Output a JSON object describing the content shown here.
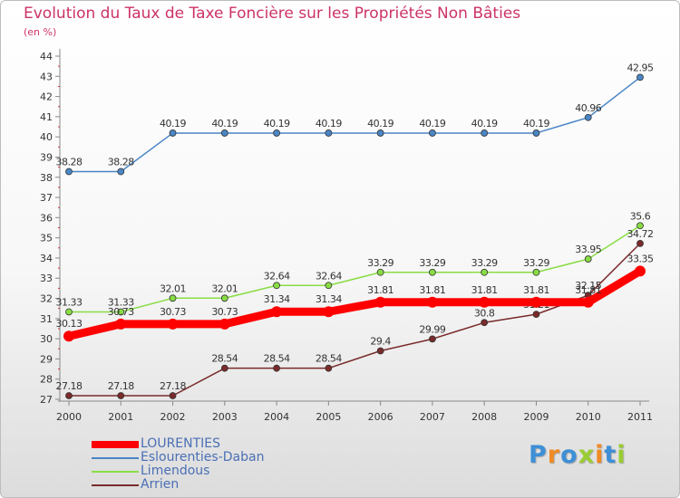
{
  "chart_data": {
    "type": "line",
    "title": "Evolution du Taux de Taxe Foncière sur les Propriétés Non Bâties",
    "subtitle": "(en %)",
    "xlabel": "",
    "ylabel": "",
    "ylim": [
      27,
      44
    ],
    "yticks": [
      "27",
      "28",
      "29",
      "30",
      "31",
      "32",
      "33",
      "34",
      "35",
      "36",
      "37",
      "38",
      "39",
      "40",
      "41",
      "42",
      "43",
      "44"
    ],
    "categories": [
      "2000",
      "2001",
      "2002",
      "2003",
      "2004",
      "2005",
      "2006",
      "2007",
      "2008",
      "2009",
      "2010",
      "2011"
    ],
    "grid": false,
    "legend_position": "bottom-left",
    "series": [
      {
        "name": "LOURENTIES",
        "color": "#ff0000",
        "values": [
          30.13,
          30.73,
          30.73,
          30.73,
          31.34,
          31.34,
          31.81,
          31.81,
          31.81,
          31.81,
          31.81,
          33.35
        ],
        "labels": [
          "30.13",
          "30.73",
          "30.73",
          "30.73",
          "31.34",
          "31.34",
          "31.81",
          "31.81",
          "31.81",
          "31.81",
          "31.81",
          "33.35"
        ]
      },
      {
        "name": "Eslourenties-Daban",
        "color": "#4a86c6",
        "values": [
          38.28,
          38.28,
          40.19,
          40.19,
          40.19,
          40.19,
          40.19,
          40.19,
          40.19,
          40.19,
          40.96,
          42.95
        ],
        "labels": [
          "38.28",
          "38.28",
          "40.19",
          "40.19",
          "40.19",
          "40.19",
          "40.19",
          "40.19",
          "40.19",
          "40.19",
          "40.96",
          "42.95"
        ]
      },
      {
        "name": "Limendous",
        "color": "#88dd44",
        "values": [
          31.33,
          31.33,
          32.01,
          32.01,
          32.64,
          32.64,
          33.29,
          33.29,
          33.29,
          33.29,
          33.95,
          35.6
        ],
        "labels": [
          "31.33",
          "31.33",
          "32.01",
          "32.01",
          "32.64",
          "32.64",
          "33.29",
          "33.29",
          "33.29",
          "33.29",
          "33.95",
          "35.6"
        ]
      },
      {
        "name": "Arrien",
        "color": "#7a2a2a",
        "values": [
          27.18,
          27.18,
          27.18,
          28.54,
          28.54,
          28.54,
          29.4,
          29.99,
          30.8,
          31.21,
          32.15,
          34.72
        ],
        "labels": [
          "27.18",
          "27.18",
          "27.18",
          "28.54",
          "28.54",
          "28.54",
          "29.4",
          "29.99",
          "30.8",
          "31.21",
          "32.15",
          "34.72"
        ]
      }
    ]
  },
  "logo": {
    "text": "Proxiti",
    "letters": [
      "P",
      "r",
      "o",
      "x",
      "i",
      "t",
      "i"
    ],
    "colors": [
      "#3d8fd6",
      "#f08a24",
      "#3d8fd6",
      "#9acd32",
      "#f08a24",
      "#3d8fd6",
      "#9acd32"
    ]
  }
}
